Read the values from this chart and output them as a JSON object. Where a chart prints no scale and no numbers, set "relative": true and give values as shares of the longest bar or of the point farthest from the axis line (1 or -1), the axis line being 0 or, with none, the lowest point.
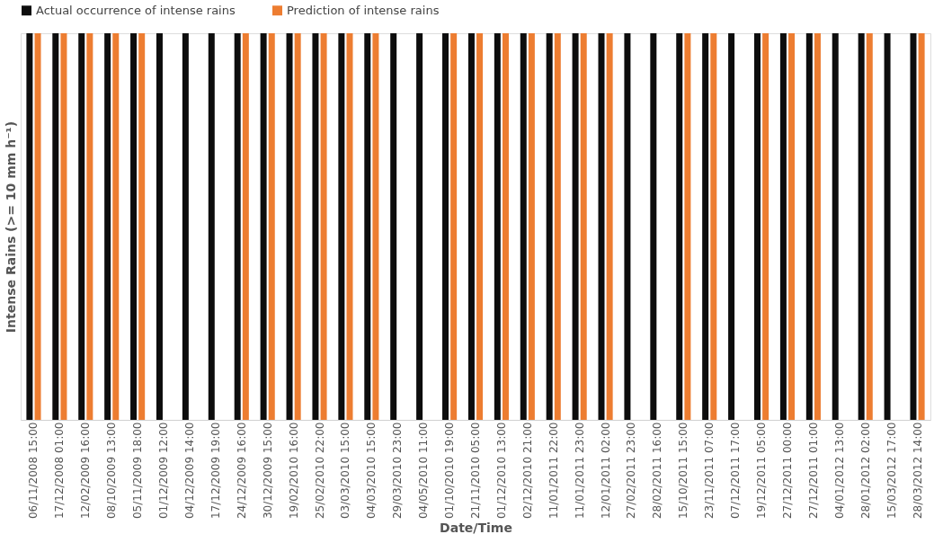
{
  "chart_data": {
    "type": "bar",
    "relative": true,
    "xlabel": "Date/Time",
    "ylabel": "Intense Rains (>= 10 mm h⁻¹)",
    "legend": "top",
    "categories": [
      "06/11/2008 15:00",
      "17/12/2008 01:00",
      "12/02/2009 16:00",
      "08/10/2009 13:00",
      "05/11/2009 18:00",
      "01/12/2009 12:00",
      "04/12/2009 14:00",
      "17/12/2009 19:00",
      "24/12/2009 16:00",
      "30/12/2009 15:00",
      "19/02/2010 16:00",
      "25/02/2010 22:00",
      "03/03/2010 15:00",
      "04/03/2010 15:00",
      "29/03/2010 23:00",
      "04/05/2010 11:00",
      "01/10/2010 19:00",
      "21/11/2010 05:00",
      "01/12/2010 13:00",
      "02/12/2010 21:00",
      "11/01/2011 22:00",
      "11/01/2011 23:00",
      "12/01/2011 02:00",
      "27/02/2011 23:00",
      "28/02/2011 16:00",
      "15/10/2011 15:00",
      "23/11/2011 07:00",
      "07/12/2011 17:00",
      "19/12/2011 05:00",
      "27/12/2011 00:00",
      "27/12/2011 01:00",
      "04/01/2012 13:00",
      "28/01/2012 02:00",
      "15/03/2012 17:00",
      "28/03/2012 14:00"
    ],
    "series": [
      {
        "name": "Actual occurrence of intense rains",
        "color": "#0d0d0d",
        "values": [
          1,
          1,
          1,
          1,
          1,
          1,
          1,
          1,
          1,
          1,
          1,
          1,
          1,
          1,
          1,
          1,
          1,
          1,
          1,
          1,
          1,
          1,
          1,
          1,
          1,
          1,
          1,
          1,
          1,
          1,
          1,
          1,
          1,
          1,
          1
        ]
      },
      {
        "name": "Prediction of intense rains",
        "color": "#ed7d31",
        "values": [
          1,
          1,
          1,
          1,
          1,
          0,
          0,
          0,
          1,
          1,
          1,
          1,
          1,
          1,
          0,
          0,
          1,
          1,
          1,
          1,
          1,
          1,
          1,
          0,
          0,
          1,
          1,
          0,
          1,
          1,
          1,
          0,
          1,
          0,
          1
        ]
      }
    ]
  }
}
